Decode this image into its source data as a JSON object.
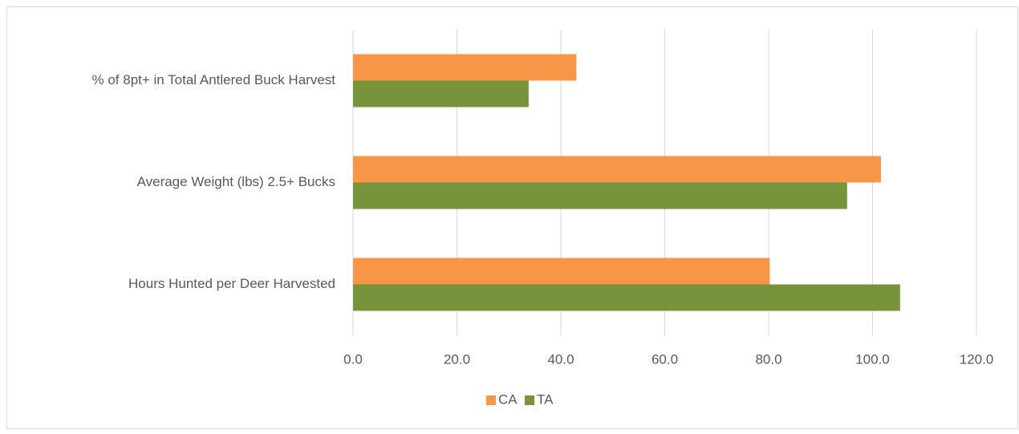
{
  "chart_data": {
    "type": "hbar",
    "categories": [
      "% of 8pt+ in Total Antlered Buck Harvest",
      "Average Weight (lbs) 2.5+ Bucks",
      "Hours Hunted per Deer Harvested"
    ],
    "series": [
      {
        "name": "CA",
        "color": "#f79646",
        "values": [
          43,
          101.6,
          80.2
        ]
      },
      {
        "name": "TA",
        "color": "#77933c",
        "values": [
          33.8,
          95.1,
          105.3
        ]
      }
    ],
    "xlim": [
      0,
      120
    ],
    "xticks": [
      {
        "value": 0,
        "label": "0.0"
      },
      {
        "value": 20,
        "label": "20.0"
      },
      {
        "value": 40,
        "label": "40.0"
      },
      {
        "value": 60,
        "label": "60.0"
      },
      {
        "value": 80,
        "label": "80.0"
      },
      {
        "value": 100,
        "label": "100.0"
      },
      {
        "value": 120,
        "label": "120.0"
      }
    ],
    "grid": true,
    "legend": "bottom"
  }
}
